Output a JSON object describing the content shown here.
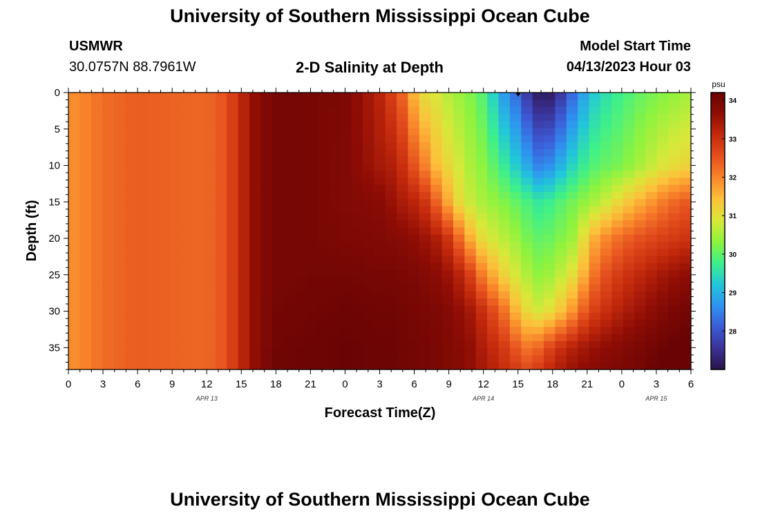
{
  "header": {
    "title": "University of Southern Mississippi Ocean Cube",
    "station": "USMWR",
    "coords": "30.0757N  88.7961W",
    "subtitle": "2-D Salinity at Depth",
    "model_start_label": "Model Start Time",
    "model_start_value": "04/13/2023 Hour 03",
    "footer_title": "University of Southern Mississippi Ocean Cube"
  },
  "chart_data": {
    "type": "heatmap",
    "xlabel": "Forecast Time(Z)",
    "ylabel": "Depth (ft)",
    "x_range_hours": [
      0,
      54
    ],
    "x_tick_labels": [
      "0",
      "3",
      "6",
      "9",
      "12",
      "15",
      "18",
      "21",
      "0",
      "3",
      "6",
      "9",
      "12",
      "15",
      "18",
      "21",
      "0",
      "3",
      "6"
    ],
    "date_labels": [
      {
        "text": "APR 13",
        "hour": 12
      },
      {
        "text": "APR 14",
        "hour": 36
      },
      {
        "text": "APR 15",
        "hour": 51
      }
    ],
    "y_range": [
      0,
      38
    ],
    "y_inverted": true,
    "y_ticks": [
      0,
      5,
      10,
      15,
      20,
      25,
      30,
      35
    ],
    "colorbar": {
      "unit": "psu",
      "range": [
        27,
        34.2
      ],
      "ticks": [
        28,
        29,
        30,
        31,
        32,
        33,
        34
      ],
      "colors": [
        "#2a1248",
        "#3b3296",
        "#3c5bd6",
        "#2f93f0",
        "#22c7d9",
        "#3ef08a",
        "#8ef33e",
        "#d9e83a",
        "#fcc13a",
        "#f9862b",
        "#e5501e",
        "#c42a0c",
        "#8f0d05",
        "#6a0404"
      ]
    },
    "grid_columns": 55,
    "grid_rows": 39,
    "depth_profiles": {
      "depths": [
        0,
        10,
        15,
        20,
        25,
        30,
        35,
        38
      ],
      "times": [
        0,
        1,
        3,
        6,
        9,
        12,
        13.5,
        14.5,
        15.5,
        16.5,
        18,
        21,
        24,
        27,
        28,
        29,
        30,
        31,
        32,
        33,
        34,
        35,
        36,
        38,
        39,
        40,
        41,
        42,
        43,
        44,
        45,
        46,
        48,
        50,
        52,
        54
      ],
      "values": [
        [
          31.9,
          31.9,
          31.9,
          31.9,
          31.9,
          31.9,
          31.9,
          31.9
        ],
        [
          31.95,
          31.95,
          31.95,
          31.95,
          31.95,
          31.95,
          31.95,
          31.95
        ],
        [
          32.25,
          32.25,
          32.25,
          32.25,
          32.25,
          32.25,
          32.25,
          32.25
        ],
        [
          32.4,
          32.4,
          32.4,
          32.4,
          32.4,
          32.4,
          32.4,
          32.4
        ],
        [
          32.35,
          32.35,
          32.35,
          32.35,
          32.35,
          32.35,
          32.35,
          32.35
        ],
        [
          32.3,
          32.3,
          32.3,
          32.3,
          32.3,
          32.3,
          32.3,
          32.3
        ],
        [
          32.5,
          32.5,
          32.5,
          32.5,
          32.5,
          32.5,
          32.5,
          32.5
        ],
        [
          32.9,
          32.9,
          32.9,
          32.9,
          32.9,
          32.9,
          32.9,
          32.9
        ],
        [
          33.35,
          33.35,
          33.35,
          33.35,
          33.35,
          33.35,
          33.35,
          33.35
        ],
        [
          33.75,
          33.75,
          33.75,
          33.75,
          33.75,
          33.75,
          33.75,
          33.75
        ],
        [
          34.0,
          34.0,
          34.0,
          34.0,
          34.0,
          34.05,
          34.1,
          34.1
        ],
        [
          34.0,
          34.0,
          34.0,
          34.0,
          34.05,
          34.1,
          34.15,
          34.15
        ],
        [
          33.9,
          33.85,
          33.85,
          33.9,
          34.05,
          34.15,
          34.2,
          34.2
        ],
        [
          33.2,
          33.4,
          33.75,
          33.85,
          34.0,
          34.1,
          34.15,
          34.15
        ],
        [
          32.8,
          33.3,
          33.55,
          33.8,
          34.0,
          34.1,
          34.15,
          34.15
        ],
        [
          32.3,
          33.0,
          33.35,
          33.75,
          33.95,
          34.05,
          34.1,
          34.1
        ],
        [
          31.5,
          32.5,
          33.2,
          33.65,
          33.9,
          34.0,
          34.05,
          34.05
        ],
        [
          31.0,
          32.0,
          32.9,
          33.5,
          33.8,
          33.95,
          34.0,
          34.0
        ],
        [
          30.9,
          31.4,
          32.3,
          33.3,
          33.7,
          33.9,
          33.95,
          33.95
        ],
        [
          30.6,
          31.1,
          31.6,
          32.9,
          33.5,
          33.8,
          33.85,
          33.85
        ],
        [
          30.4,
          30.8,
          31.0,
          32.2,
          33.2,
          33.6,
          33.75,
          33.75
        ],
        [
          30.2,
          30.5,
          30.7,
          31.5,
          32.7,
          33.4,
          33.6,
          33.6
        ],
        [
          29.9,
          30.3,
          30.5,
          31.0,
          32.0,
          33.0,
          33.3,
          33.4
        ],
        [
          28.6,
          29.6,
          30.2,
          30.6,
          31.1,
          32.1,
          32.8,
          33.0
        ],
        [
          28.2,
          29.2,
          30.0,
          30.4,
          30.8,
          31.4,
          32.4,
          32.8
        ],
        [
          27.5,
          28.8,
          29.8,
          30.1,
          30.5,
          31.0,
          32.1,
          32.6
        ],
        [
          27.1,
          28.4,
          29.6,
          30.0,
          30.3,
          30.8,
          32.4,
          32.9
        ],
        [
          27.2,
          28.7,
          29.8,
          30.1,
          30.5,
          31.1,
          32.8,
          33.2
        ],
        [
          27.8,
          29.1,
          30.0,
          30.3,
          30.8,
          31.5,
          33.1,
          33.4
        ],
        [
          28.4,
          29.5,
          30.2,
          30.5,
          31.1,
          32.0,
          33.3,
          33.6
        ],
        [
          29.0,
          29.8,
          30.4,
          31.3,
          31.8,
          32.6,
          33.5,
          33.7
        ],
        [
          29.4,
          30.0,
          30.6,
          31.8,
          32.4,
          32.9,
          33.6,
          33.8
        ],
        [
          29.8,
          30.2,
          31.2,
          32.3,
          32.9,
          33.3,
          33.8,
          33.9
        ],
        [
          30.1,
          30.6,
          31.7,
          32.6,
          33.2,
          33.6,
          34.0,
          34.1
        ],
        [
          30.3,
          31.0,
          32.2,
          32.8,
          33.5,
          33.9,
          34.2,
          34.3
        ],
        [
          30.5,
          31.2,
          32.5,
          33.0,
          33.7,
          34.1,
          34.3,
          34.4
        ]
      ]
    }
  }
}
